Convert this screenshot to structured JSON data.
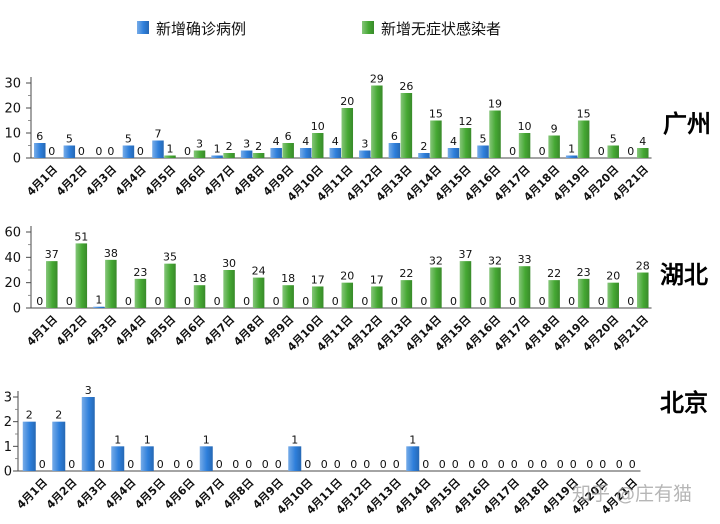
{
  "watermark": "知乎 @庄有猫",
  "legend_position": "top",
  "chart_data": [
    {
      "type": "bar",
      "title": "广州",
      "categories": [
        "4月1日",
        "4月2日",
        "4月3日",
        "4月4日",
        "4月5日",
        "4月6日",
        "4月7日",
        "4月8日",
        "4月9日",
        "4月10日",
        "4月11日",
        "4月12日",
        "4月13日",
        "4月14日",
        "4月15日",
        "4月16日",
        "4月17日",
        "4月18日",
        "4月19日",
        "4月20日",
        "4月21日"
      ],
      "series": [
        {
          "name": "新增确诊病例",
          "color": "#2e7fdb",
          "values": [
            6,
            5,
            0,
            5,
            7,
            0,
            1,
            3,
            4,
            4,
            4,
            3,
            6,
            2,
            4,
            5,
            0,
            0,
            1,
            0,
            0
          ]
        },
        {
          "name": "新增无症状感染者",
          "color": "#45a833",
          "values": [
            0,
            0,
            0,
            0,
            1,
            3,
            2,
            2,
            6,
            10,
            20,
            29,
            26,
            15,
            12,
            19,
            10,
            9,
            15,
            5,
            4
          ]
        }
      ],
      "yticks": [
        0,
        10,
        20,
        30
      ],
      "ylim": [
        0,
        30
      ],
      "grid": false,
      "data_labels": true
    },
    {
      "type": "bar",
      "title": "湖北",
      "categories": [
        "4月1日",
        "4月2日",
        "4月3日",
        "4月4日",
        "4月5日",
        "4月6日",
        "4月7日",
        "4月8日",
        "4月9日",
        "4月10日",
        "4月11日",
        "4月12日",
        "4月13日",
        "4月14日",
        "4月15日",
        "4月16日",
        "4月17日",
        "4月18日",
        "4月19日",
        "4月20日",
        "4月21日"
      ],
      "series": [
        {
          "name": "新增确诊病例",
          "color": "#2e7fdb",
          "values": [
            0,
            0,
            1,
            0,
            0,
            0,
            0,
            0,
            0,
            0,
            0,
            0,
            0,
            0,
            0,
            0,
            0,
            0,
            0,
            0,
            0
          ]
        },
        {
          "name": "新增无症状感染者",
          "color": "#45a833",
          "values": [
            37,
            51,
            38,
            23,
            35,
            18,
            30,
            24,
            18,
            17,
            20,
            17,
            22,
            32,
            37,
            32,
            33,
            22,
            23,
            20,
            28
          ]
        }
      ],
      "yticks": [
        0,
        20,
        40,
        60
      ],
      "ylim": [
        0,
        60
      ],
      "grid": false,
      "data_labels": true
    },
    {
      "type": "bar",
      "title": "北京",
      "categories": [
        "4月1日",
        "4月2日",
        "4月3日",
        "4月4日",
        "4月5日",
        "4月6日",
        "4月7日",
        "4月8日",
        "4月9日",
        "4月10日",
        "4月11日",
        "4月12日",
        "4月13日",
        "4月14日",
        "4月15日",
        "4月16日",
        "4月17日",
        "4月18日",
        "4月19日",
        "4月20日",
        "4月21日"
      ],
      "series": [
        {
          "name": "新增确诊病例",
          "color": "#2e7fdb",
          "values": [
            2,
            2,
            3,
            1,
            1,
            0,
            1,
            0,
            0,
            1,
            0,
            0,
            0,
            1,
            0,
            0,
            0,
            0,
            0,
            0,
            0
          ]
        },
        {
          "name": "新增无症状感染者",
          "color": "#45a833",
          "values": [
            0,
            0,
            0,
            0,
            0,
            0,
            0,
            0,
            0,
            0,
            0,
            0,
            0,
            0,
            0,
            0,
            0,
            0,
            0,
            0,
            0
          ]
        }
      ],
      "yticks": [
        0,
        1,
        2,
        3
      ],
      "ylim": [
        0,
        3
      ],
      "grid": false,
      "data_labels": true
    }
  ]
}
